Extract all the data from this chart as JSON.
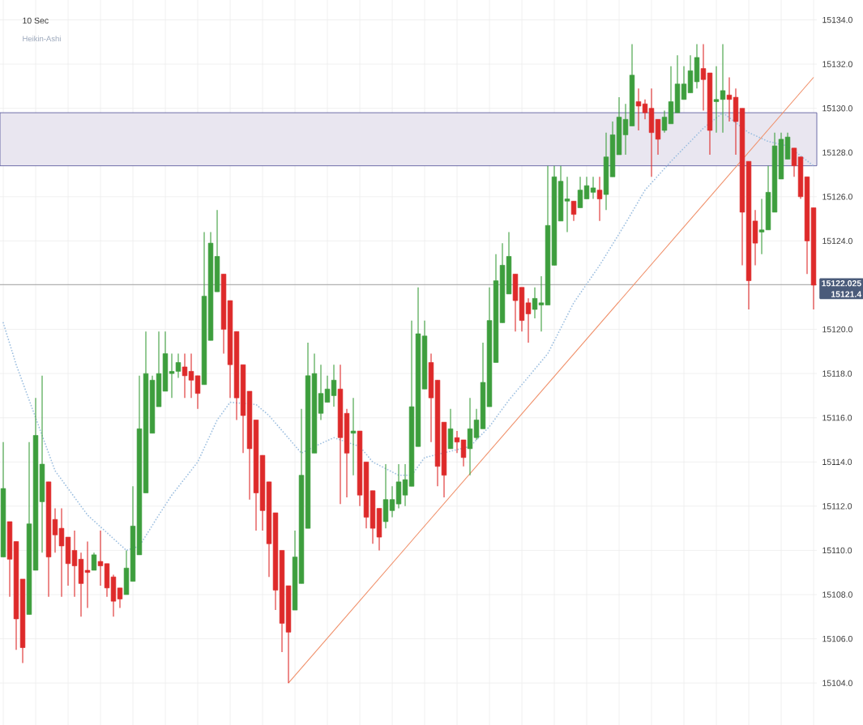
{
  "chart_data": {
    "type": "candlestick",
    "title": "10 Sec",
    "subtitle": "Heikin-Ashi",
    "categories": [
      null,
      null,
      null,
      null,
      null,
      null,
      null,
      null,
      null,
      null,
      null,
      null,
      null,
      null,
      null,
      null,
      null,
      null,
      null,
      null,
      null,
      null,
      null,
      null,
      null,
      null,
      null,
      null,
      null,
      null,
      null,
      null,
      null,
      null,
      null,
      null,
      null,
      null,
      null,
      null,
      null,
      null,
      null,
      null,
      null,
      null,
      null,
      null,
      null,
      null,
      null,
      null,
      null,
      null,
      null,
      null,
      null,
      null,
      null,
      null,
      null,
      null,
      null,
      null,
      null,
      null,
      null,
      null,
      null,
      null,
      null,
      null,
      null,
      null,
      null,
      null,
      null,
      null,
      null,
      null,
      null,
      null,
      null,
      null,
      null,
      null,
      null,
      null,
      null,
      null,
      null,
      null,
      null,
      null,
      null,
      null,
      null,
      null,
      null,
      null,
      null,
      null,
      null,
      null,
      null,
      null,
      null,
      null,
      null,
      null,
      null,
      null,
      null,
      null,
      null,
      null,
      null,
      null,
      null,
      null,
      null,
      null,
      null,
      null,
      null,
      null
    ],
    "ohlc": [
      [
        15109.7,
        15114.9,
        15109.7,
        15112.8
      ],
      [
        15111.3,
        15111.3,
        15107.9,
        15109.6
      ],
      [
        15110.4,
        15110.4,
        15105.5,
        15106.9
      ],
      [
        15108.7,
        15108.7,
        15104.9,
        15105.6
      ],
      [
        15107.1,
        15114.9,
        15107.1,
        15111.2
      ],
      [
        15109.1,
        15116.9,
        15109.1,
        15115.2
      ],
      [
        15112.2,
        15117.9,
        15109.9,
        15113.9
      ],
      [
        15113.1,
        15113.1,
        15107.9,
        15109.7
      ],
      [
        15111.4,
        15111.9,
        15109.9,
        15110.7
      ],
      [
        15111.0,
        15111.9,
        15107.9,
        15110.2
      ],
      [
        15110.6,
        15110.6,
        15108.4,
        15109.4
      ],
      [
        15110.0,
        15110.9,
        15107.9,
        15109.3
      ],
      [
        15109.6,
        15109.9,
        15107.0,
        15108.5
      ],
      [
        15109.1,
        15110.4,
        15107.4,
        15109.0
      ],
      [
        15109.1,
        15109.9,
        15109.1,
        15109.8
      ],
      [
        15109.5,
        15110.9,
        15108.4,
        15109.3
      ],
      [
        15109.4,
        15109.4,
        15107.9,
        15108.3
      ],
      [
        15108.8,
        15108.9,
        15107.0,
        15107.7
      ],
      [
        15108.3,
        15108.3,
        15107.4,
        15107.8
      ],
      [
        15108.0,
        15110.0,
        15108.0,
        15109.2
      ],
      [
        15108.6,
        15112.9,
        15108.6,
        15111.1
      ],
      [
        15109.8,
        15117.9,
        15109.8,
        15115.5
      ],
      [
        15112.6,
        15119.9,
        15112.6,
        15118.0
      ],
      [
        15115.3,
        15117.9,
        15115.3,
        15117.7
      ],
      [
        15116.5,
        15119.9,
        15116.5,
        15118.0
      ],
      [
        15117.2,
        15119.9,
        15117.2,
        15118.9
      ],
      [
        15118.0,
        15118.9,
        15116.9,
        15118.1
      ],
      [
        15118.1,
        15118.9,
        15117.8,
        15118.5
      ],
      [
        15118.3,
        15118.9,
        15116.9,
        15117.9
      ],
      [
        15118.1,
        15118.9,
        15116.9,
        15117.7
      ],
      [
        15117.9,
        15117.9,
        15116.4,
        15117.1
      ],
      [
        15117.5,
        15124.4,
        15117.5,
        15121.5
      ],
      [
        15119.5,
        15124.4,
        15119.5,
        15123.9
      ],
      [
        15121.7,
        15125.4,
        15121.7,
        15123.3
      ],
      [
        15122.5,
        15122.5,
        15118.9,
        15120.0
      ],
      [
        15121.3,
        15121.3,
        15116.9,
        15118.4
      ],
      [
        15119.9,
        15119.9,
        15115.9,
        15116.9
      ],
      [
        15118.4,
        15118.4,
        15114.4,
        15116.1
      ],
      [
        15117.2,
        15117.2,
        15112.3,
        15114.6
      ],
      [
        15115.9,
        15115.9,
        15110.9,
        15112.6
      ],
      [
        15114.3,
        15114.3,
        15110.9,
        15111.8
      ],
      [
        15113.1,
        15113.1,
        15108.8,
        15110.3
      ],
      [
        15111.7,
        15111.7,
        15107.3,
        15108.2
      ],
      [
        15110.0,
        15110.0,
        15105.4,
        15106.7
      ],
      [
        15108.4,
        15108.4,
        15104.0,
        15106.3
      ],
      [
        15107.3,
        15110.9,
        15107.3,
        15109.7
      ],
      [
        15108.5,
        15116.4,
        15108.5,
        15113.4
      ],
      [
        15111.0,
        15119.4,
        15111.0,
        15117.9
      ],
      [
        15114.4,
        15118.9,
        15114.4,
        15118.0
      ],
      [
        15116.2,
        15118.4,
        15115.9,
        15117.1
      ],
      [
        15116.7,
        15117.9,
        15116.7,
        15117.3
      ],
      [
        15117.0,
        15118.4,
        15116.5,
        15117.7
      ],
      [
        15117.3,
        15118.4,
        15112.1,
        15115.1
      ],
      [
        15116.2,
        15116.4,
        15112.4,
        15114.4
      ],
      [
        15115.3,
        15116.9,
        15113.4,
        15115.4
      ],
      [
        15115.4,
        15115.4,
        15112.0,
        15112.5
      ],
      [
        15114.0,
        15114.0,
        15111.0,
        15111.5
      ],
      [
        15112.7,
        15112.7,
        15110.3,
        15111.0
      ],
      [
        15111.9,
        15111.9,
        15110.0,
        15110.6
      ],
      [
        15111.3,
        15113.9,
        15111.0,
        15112.3
      ],
      [
        15111.8,
        15112.9,
        15111.5,
        15112.3
      ],
      [
        15112.1,
        15113.9,
        15111.9,
        15113.1
      ],
      [
        15112.5,
        15113.9,
        15112.0,
        15113.2
      ],
      [
        15112.9,
        15120.4,
        15112.9,
        15116.5
      ],
      [
        15114.7,
        15121.9,
        15114.7,
        15119.8
      ],
      [
        15117.3,
        15120.4,
        15117.3,
        15119.7
      ],
      [
        15118.5,
        15118.9,
        15114.9,
        15116.9
      ],
      [
        15117.7,
        15117.7,
        15112.9,
        15113.8
      ],
      [
        15115.8,
        15115.8,
        15112.4,
        15113.4
      ],
      [
        15114.6,
        15116.4,
        15114.6,
        15115.5
      ],
      [
        15115.1,
        15115.4,
        15114.4,
        15114.9
      ],
      [
        15115.0,
        15115.0,
        15113.8,
        15114.2
      ],
      [
        15114.6,
        15116.9,
        15113.4,
        15115.5
      ],
      [
        15115.1,
        15116.4,
        15115.0,
        15115.9
      ],
      [
        15115.5,
        15119.4,
        15115.5,
        15117.6
      ],
      [
        15116.5,
        15121.9,
        15116.5,
        15120.4
      ],
      [
        15118.5,
        15123.4,
        15118.5,
        15122.2
      ],
      [
        15120.3,
        15123.9,
        15120.3,
        15122.9
      ],
      [
        15121.6,
        15124.4,
        15121.6,
        15123.3
      ],
      [
        15122.5,
        15122.5,
        15119.9,
        15121.3
      ],
      [
        15121.9,
        15121.9,
        15119.9,
        15120.4
      ],
      [
        15121.2,
        15121.4,
        15119.4,
        15120.7
      ],
      [
        15120.9,
        15121.9,
        15120.5,
        15121.4
      ],
      [
        15121.1,
        15122.4,
        15119.9,
        15121.2
      ],
      [
        15121.1,
        15127.4,
        15121.1,
        15124.7
      ],
      [
        15122.9,
        15127.4,
        15122.9,
        15126.9
      ],
      [
        15124.9,
        15127.4,
        15124.9,
        15126.7
      ],
      [
        15125.8,
        15126.9,
        15124.4,
        15125.9
      ],
      [
        15125.8,
        15125.8,
        15124.9,
        15125.2
      ],
      [
        15125.5,
        15126.9,
        15125.5,
        15126.3
      ],
      [
        15125.9,
        15126.9,
        15125.9,
        15126.5
      ],
      [
        15126.2,
        15126.9,
        15125.9,
        15126.4
      ],
      [
        15126.3,
        15126.9,
        15124.9,
        15125.9
      ],
      [
        15126.1,
        15128.9,
        15125.4,
        15127.8
      ],
      [
        15126.9,
        15129.4,
        15126.9,
        15128.8
      ],
      [
        15127.9,
        15130.5,
        15127.9,
        15129.6
      ],
      [
        15128.8,
        15130.2,
        15127.9,
        15129.5
      ],
      [
        15129.2,
        15132.9,
        15129.2,
        15131.5
      ],
      [
        15130.3,
        15130.9,
        15129.0,
        15130.1
      ],
      [
        15130.2,
        15130.4,
        15129.5,
        15129.8
      ],
      [
        15130.0,
        15130.9,
        15126.9,
        15128.9
      ],
      [
        15129.5,
        15129.5,
        15127.9,
        15128.6
      ],
      [
        15129.0,
        15129.9,
        15128.9,
        15129.6
      ],
      [
        15129.3,
        15131.9,
        15129.3,
        15130.3
      ],
      [
        15129.8,
        15132.4,
        15129.8,
        15131.1
      ],
      [
        15130.4,
        15131.9,
        15130.4,
        15131.1
      ],
      [
        15130.7,
        15132.4,
        15130.7,
        15131.7
      ],
      [
        15131.2,
        15132.9,
        15130.9,
        15132.3
      ],
      [
        15131.8,
        15132.9,
        15129.9,
        15131.3
      ],
      [
        15131.6,
        15131.6,
        15127.9,
        15129.0
      ],
      [
        15130.3,
        15131.9,
        15128.9,
        15130.4
      ],
      [
        15130.4,
        15132.9,
        15128.9,
        15130.8
      ],
      [
        15130.6,
        15131.4,
        15129.4,
        15130.4
      ],
      [
        15130.5,
        15130.9,
        15127.9,
        15129.4
      ],
      [
        15130.0,
        15130.0,
        15122.9,
        15125.3
      ],
      [
        15127.6,
        15127.6,
        15120.9,
        15122.2
      ],
      [
        15124.9,
        15125.4,
        15122.9,
        15123.9
      ],
      [
        15124.4,
        15125.9,
        15123.4,
        15124.5
      ],
      [
        15124.5,
        15127.4,
        15124.5,
        15126.2
      ],
      [
        15125.3,
        15128.9,
        15125.3,
        15128.3
      ],
      [
        15126.8,
        15128.9,
        15126.8,
        15128.6
      ],
      [
        15127.7,
        15128.9,
        15127.7,
        15128.7
      ],
      [
        15128.2,
        15128.2,
        15126.9,
        15127.4
      ],
      [
        15127.8,
        15127.8,
        15125.9,
        15126.0
      ],
      [
        15126.9,
        15126.9,
        15122.5,
        15124.0
      ],
      [
        15125.5,
        15125.5,
        15120.9,
        15122.0
      ]
    ],
    "colors": [
      "#3d9e3d",
      "#de2a2a",
      "#de2a2a",
      "#de2a2a",
      "#3d9e3d",
      "#3d9e3d",
      "#3d9e3d",
      "#de2a2a",
      "#de2a2a",
      "#de2a2a",
      "#de2a2a",
      "#de2a2a",
      "#de2a2a",
      "#de2a2a",
      "#3d9e3d",
      "#de2a2a",
      "#de2a2a",
      "#de2a2a",
      "#de2a2a",
      "#3d9e3d",
      "#3d9e3d",
      "#3d9e3d",
      "#3d9e3d",
      "#3d9e3d",
      "#3d9e3d",
      "#3d9e3d",
      "#3d9e3d",
      "#3d9e3d",
      "#de2a2a",
      "#de2a2a",
      "#de2a2a",
      "#3d9e3d",
      "#3d9e3d",
      "#3d9e3d",
      "#de2a2a",
      "#de2a2a",
      "#de2a2a",
      "#de2a2a",
      "#de2a2a",
      "#de2a2a",
      "#de2a2a",
      "#de2a2a",
      "#de2a2a",
      "#de2a2a",
      "#de2a2a",
      "#3d9e3d",
      "#3d9e3d",
      "#3d9e3d",
      "#3d9e3d",
      "#3d9e3d",
      "#3d9e3d",
      "#3d9e3d",
      "#de2a2a",
      "#de2a2a",
      "#3d9e3d",
      "#de2a2a",
      "#de2a2a",
      "#de2a2a",
      "#de2a2a",
      "#3d9e3d",
      "#3d9e3d",
      "#3d9e3d",
      "#3d9e3d",
      "#3d9e3d",
      "#3d9e3d",
      "#3d9e3d",
      "#de2a2a",
      "#de2a2a",
      "#de2a2a",
      "#3d9e3d",
      "#de2a2a",
      "#de2a2a",
      "#3d9e3d",
      "#3d9e3d",
      "#3d9e3d",
      "#3d9e3d",
      "#3d9e3d",
      "#3d9e3d",
      "#3d9e3d",
      "#de2a2a",
      "#de2a2a",
      "#de2a2a",
      "#3d9e3d",
      "#3d9e3d",
      "#3d9e3d",
      "#3d9e3d",
      "#3d9e3d",
      "#3d9e3d",
      "#de2a2a",
      "#3d9e3d",
      "#3d9e3d",
      "#3d9e3d",
      "#de2a2a",
      "#3d9e3d",
      "#3d9e3d",
      "#3d9e3d",
      "#3d9e3d",
      "#3d9e3d",
      "#de2a2a",
      "#de2a2a",
      "#de2a2a",
      "#de2a2a",
      "#3d9e3d",
      "#3d9e3d",
      "#3d9e3d",
      "#3d9e3d",
      "#3d9e3d",
      "#3d9e3d",
      "#de2a2a",
      "#de2a2a",
      "#3d9e3d",
      "#3d9e3d",
      "#de2a2a",
      "#de2a2a",
      "#de2a2a",
      "#de2a2a",
      "#de2a2a",
      "#3d9e3d",
      "#3d9e3d",
      "#3d9e3d",
      "#3d9e3d",
      "#3d9e3d",
      "#de2a2a",
      "#de2a2a",
      "#de2a2a",
      "#de2a2a"
    ],
    "series": [
      {
        "type": "line",
        "color": "#9dbfe0",
        "line_style": "dotted",
        "values": [
          15120.3,
          null,
          15118.4,
          null,
          null,
          15116.0,
          null,
          null,
          15113.6,
          null,
          null,
          null,
          null,
          15111.6,
          null,
          null,
          null,
          null,
          null,
          15110.0,
          null,
          15110.2,
          null,
          null,
          15111.6,
          null,
          15112.5,
          null,
          null,
          null,
          15114.0,
          null,
          null,
          15115.9,
          null,
          15116.7,
          null,
          null,
          null,
          15116.6,
          null,
          15116.1,
          null,
          null,
          null,
          null,
          15114.4,
          null,
          15114.7,
          null,
          null,
          15115.1,
          null,
          null,
          null,
          15114.7,
          null,
          15114.0,
          null,
          null,
          null,
          15113.4,
          null,
          15113.4,
          null,
          15114.2,
          null,
          null,
          null,
          null,
          null,
          null,
          15114.7,
          null,
          null,
          15115.6,
          null,
          null,
          15116.8,
          null,
          null,
          null,
          15118.2,
          null,
          15118.9,
          null,
          null,
          null,
          15121.2,
          null,
          null,
          null,
          15122.9,
          null,
          null,
          null,
          15124.8,
          null,
          null,
          15126.3,
          null,
          null,
          null,
          15127.6,
          null,
          null,
          null,
          null,
          15129.1,
          null,
          null,
          15129.8,
          null,
          null,
          null,
          15128.9,
          null,
          null,
          15128.5,
          null,
          null,
          15128.3,
          null,
          null,
          null,
          15127.4
        ]
      },
      {
        "type": "line",
        "color": "#f0906a",
        "line_style": "solid",
        "values": [
          null,
          null,
          null,
          null,
          null,
          null,
          null,
          null,
          null,
          null,
          null,
          null,
          null,
          null,
          null,
          null,
          null,
          null,
          null,
          null,
          null,
          null,
          null,
          null,
          null,
          null,
          null,
          null,
          null,
          null,
          null,
          null,
          null,
          null,
          null,
          null,
          null,
          null,
          null,
          null,
          null,
          null,
          null,
          null,
          15104.0,
          null,
          null,
          null,
          null,
          null,
          null,
          null,
          null,
          null,
          null,
          null,
          null,
          null,
          null,
          null,
          null,
          null,
          null,
          null,
          null,
          null,
          null,
          null,
          null,
          null,
          null,
          null,
          null,
          null,
          null,
          null,
          null,
          null,
          null,
          null,
          null,
          null,
          null,
          null,
          null,
          null,
          null,
          null,
          null,
          null,
          null,
          null,
          null,
          null,
          null,
          null,
          null,
          null,
          null,
          null,
          null,
          null,
          null,
          null,
          null,
          null,
          null,
          null,
          null,
          null,
          null,
          null,
          null,
          null,
          null,
          null,
          null,
          null,
          null,
          null,
          null,
          null,
          null,
          null,
          null,
          15131.4
        ]
      }
    ],
    "ylim": [
      15102.1,
      15134.9
    ],
    "yticks": [
      {
        "value": 15104,
        "label": "15104.0"
      },
      {
        "value": 15106,
        "label": "15106.0"
      },
      {
        "value": 15108,
        "label": "15108.0"
      },
      {
        "value": 15110,
        "label": "15110.0"
      },
      {
        "value": 15112,
        "label": "15112.0"
      },
      {
        "value": 15114,
        "label": "15114.0"
      },
      {
        "value": 15116,
        "label": "15116.0"
      },
      {
        "value": 15118,
        "label": "15118.0"
      },
      {
        "value": 15120,
        "label": "15120.0"
      },
      {
        "value": 15122,
        "label": null
      },
      {
        "value": 15124,
        "label": "15124.0"
      },
      {
        "value": 15126,
        "label": "15126.0"
      },
      {
        "value": 15128,
        "label": "15128.0"
      },
      {
        "value": 15130,
        "label": "15130.0"
      },
      {
        "value": 15132,
        "label": "15132.0"
      },
      {
        "value": 15134,
        "label": "15134.0"
      }
    ],
    "grid": true,
    "tick_labels": "y",
    "ref_lines": [
      {
        "axis": "y",
        "value": 15122.025,
        "label": "15122.025",
        "color": "#9a9a9a"
      }
    ],
    "bands": [
      {
        "axis": "y",
        "from": 15127.4,
        "to": 15129.8,
        "color": "#e9e6f0"
      }
    ],
    "annotations": [
      "15121.4"
    ]
  }
}
